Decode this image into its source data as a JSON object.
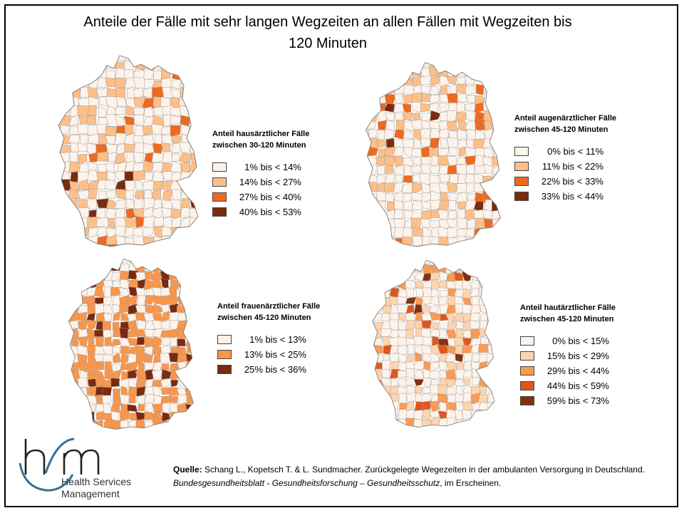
{
  "title_line1": "Anteile der Fälle mit sehr langen Wegzeiten an allen Fällen mit Wegzeiten bis",
  "title_line2": "120 Minuten",
  "colors": {
    "c1": "#fdf3ea",
    "c2": "#fdbf8a",
    "c3": "#ef6a1e",
    "c4": "#7a2a0e",
    "f2": "#f8964c",
    "d2": "#fdd4ae",
    "d3": "#f99a55",
    "d4": "#e0571a",
    "d5": "#872f10"
  },
  "maps": [
    {
      "name": "hausaerztlich",
      "legend_title_1": "Anteil hausärztlicher Fälle",
      "legend_title_2": "zwischen 30-120 Minuten",
      "classes": [
        {
          "label": "1% bis < 14%",
          "color": "#fdf3ea"
        },
        {
          "label": "14% bis < 27%",
          "color": "#fdbf8a"
        },
        {
          "label": "27% bis < 40%",
          "color": "#ef6a1e"
        },
        {
          "label": "40% bis < 53%",
          "color": "#7a2a0e"
        }
      ]
    },
    {
      "name": "augenaerztlich",
      "legend_title_1": "Anteil augenärztlicher Fälle",
      "legend_title_2": "zwischen 45-120 Minuten",
      "classes": [
        {
          "label": "0% bis < 11%",
          "color": "#fdf3ea"
        },
        {
          "label": "11% bis < 22%",
          "color": "#fdbf8a"
        },
        {
          "label": "22% bis < 33%",
          "color": "#ef6a1e"
        },
        {
          "label": "33% bis < 44%",
          "color": "#7a2a0e"
        }
      ]
    },
    {
      "name": "frauenaerztlich",
      "legend_title_1": "Anteil frauenärztlicher Fälle",
      "legend_title_2": "zwischen 45-120 Minuten",
      "classes": [
        {
          "label": "1% bis < 13%",
          "color": "#fdf3ea"
        },
        {
          "label": "13% bis < 25%",
          "color": "#f8964c"
        },
        {
          "label": "25% bis < 36%",
          "color": "#7a2a0e"
        }
      ]
    },
    {
      "name": "hautaerztlich",
      "legend_title_1": "Anteil hautärztlicher Fälle",
      "legend_title_2": "zwischen 45-120 Minuten",
      "classes": [
        {
          "label": "0% bis < 15%",
          "color": "#fdf3ea"
        },
        {
          "label": "15% bis < 29%",
          "color": "#fdd4ae"
        },
        {
          "label": "29% bis < 44%",
          "color": "#f99a55"
        },
        {
          "label": "44% bis < 59%",
          "color": "#e0571a"
        },
        {
          "label": "59% bis < 73%",
          "color": "#872f10"
        }
      ]
    }
  ],
  "logo": {
    "line1": "Health Services",
    "line2": "Management"
  },
  "source": {
    "label": "Quelle:",
    "text": " Schang L., Kopetsch T. & L. Sundmacher. Zurückgelegte Wegezeiten in der ambulanten Versorgung in Deutschland.",
    "journal": "Bundesgesundheitsblatt - Gesundheitsforschung – Gesundheitsschutz",
    "suffix": ", im Erscheinen."
  }
}
